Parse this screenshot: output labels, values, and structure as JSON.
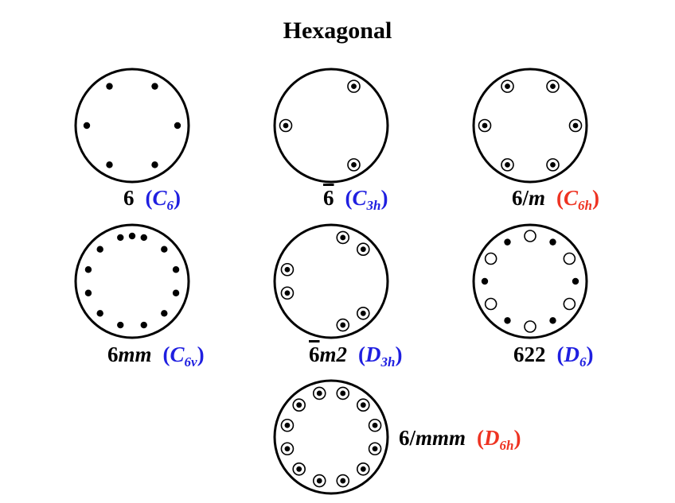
{
  "title": "Hexagonal",
  "groups": [
    {
      "id": "6",
      "sym_pre": "",
      "sym_bar": "",
      "sym_num": "6",
      "sym_post": "",
      "sch_letter": "C",
      "sch_sub": "6",
      "sch_color": "#1f1fe0",
      "points": [
        {
          "angle": 60,
          "kind": "dot"
        },
        {
          "angle": 120,
          "kind": "dot"
        },
        {
          "angle": 180,
          "kind": "dot"
        },
        {
          "angle": 240,
          "kind": "dot"
        },
        {
          "angle": 300,
          "kind": "dot"
        },
        {
          "angle": 0,
          "kind": "dot"
        }
      ]
    },
    {
      "id": "-6",
      "sym_pre": "",
      "sym_bar": "6",
      "sym_num": "",
      "sym_post": "",
      "sch_letter": "C",
      "sch_sub": "3h",
      "sch_color": "#1f1fe0",
      "points": [
        {
          "angle": 60,
          "kind": "circle-dot"
        },
        {
          "angle": 180,
          "kind": "circle-dot"
        },
        {
          "angle": 300,
          "kind": "circle-dot"
        }
      ]
    },
    {
      "id": "6/m",
      "sym_pre": "",
      "sym_bar": "",
      "sym_num": "6/",
      "sym_post": "m",
      "sch_letter": "C",
      "sch_sub": "6h",
      "sch_color": "#ee3322",
      "points": [
        {
          "angle": 60,
          "kind": "circle-dot"
        },
        {
          "angle": 120,
          "kind": "circle-dot"
        },
        {
          "angle": 180,
          "kind": "circle-dot"
        },
        {
          "angle": 240,
          "kind": "circle-dot"
        },
        {
          "angle": 300,
          "kind": "circle-dot"
        },
        {
          "angle": 0,
          "kind": "circle-dot"
        }
      ]
    },
    {
      "id": "6mm",
      "sym_pre": "",
      "sym_bar": "",
      "sym_num": "6",
      "sym_post": "mm",
      "sch_letter": "C",
      "sch_sub": "6v",
      "sch_color": "#1f1fe0",
      "points": [
        {
          "angle": 15,
          "kind": "dot"
        },
        {
          "angle": 45,
          "kind": "dot"
        },
        {
          "angle": 75,
          "kind": "dot"
        },
        {
          "angle": 105,
          "kind": "dot"
        },
        {
          "angle": 135,
          "kind": "dot"
        },
        {
          "angle": 165,
          "kind": "dot"
        },
        {
          "angle": 195,
          "kind": "dot"
        },
        {
          "angle": 225,
          "kind": "dot"
        },
        {
          "angle": 255,
          "kind": "dot"
        },
        {
          "angle": 285,
          "kind": "dot"
        },
        {
          "angle": 315,
          "kind": "dot"
        },
        {
          "angle": 345,
          "kind": "dot"
        },
        {
          "angle": 90,
          "kind": "dot"
        }
      ]
    },
    {
      "id": "-6m2",
      "sym_pre": "",
      "sym_bar": "6",
      "sym_num": "",
      "sym_post": "m2",
      "sch_letter": "D",
      "sch_sub": "3h",
      "sch_color": "#1f1fe0",
      "points": [
        {
          "angle": 45,
          "kind": "circle-dot"
        },
        {
          "angle": 75,
          "kind": "circle-dot"
        },
        {
          "angle": 165,
          "kind": "circle-dot"
        },
        {
          "angle": 195,
          "kind": "circle-dot"
        },
        {
          "angle": 285,
          "kind": "circle-dot"
        },
        {
          "angle": 315,
          "kind": "circle-dot"
        }
      ]
    },
    {
      "id": "622",
      "sym_pre": "",
      "sym_bar": "",
      "sym_num": "622",
      "sym_post": "",
      "sch_letter": "D",
      "sch_sub": "6",
      "sch_color": "#1f1fe0",
      "points": [
        {
          "angle": 90,
          "kind": "open"
        },
        {
          "angle": 60,
          "kind": "dot"
        },
        {
          "angle": 120,
          "kind": "dot"
        },
        {
          "angle": 0,
          "kind": "dot"
        },
        {
          "angle": 180,
          "kind": "dot"
        },
        {
          "angle": 240,
          "kind": "dot"
        },
        {
          "angle": 300,
          "kind": "dot"
        },
        {
          "angle": 30,
          "kind": "open"
        },
        {
          "angle": 150,
          "kind": "open"
        },
        {
          "angle": 210,
          "kind": "open"
        },
        {
          "angle": 270,
          "kind": "open"
        },
        {
          "angle": 330,
          "kind": "open"
        }
      ]
    },
    {
      "id": "6/mmm",
      "sym_pre": "",
      "sym_bar": "",
      "sym_num": "6/",
      "sym_post": "mmm",
      "sch_letter": "D",
      "sch_sub": "6h",
      "sch_color": "#ee3322",
      "points": [
        {
          "angle": 15,
          "kind": "circle-dot"
        },
        {
          "angle": 45,
          "kind": "circle-dot"
        },
        {
          "angle": 75,
          "kind": "circle-dot"
        },
        {
          "angle": 105,
          "kind": "circle-dot"
        },
        {
          "angle": 135,
          "kind": "circle-dot"
        },
        {
          "angle": 165,
          "kind": "circle-dot"
        },
        {
          "angle": 195,
          "kind": "circle-dot"
        },
        {
          "angle": 225,
          "kind": "circle-dot"
        },
        {
          "angle": 255,
          "kind": "circle-dot"
        },
        {
          "angle": 285,
          "kind": "circle-dot"
        },
        {
          "angle": 315,
          "kind": "circle-dot"
        },
        {
          "angle": 345,
          "kind": "circle-dot"
        }
      ]
    }
  ]
}
